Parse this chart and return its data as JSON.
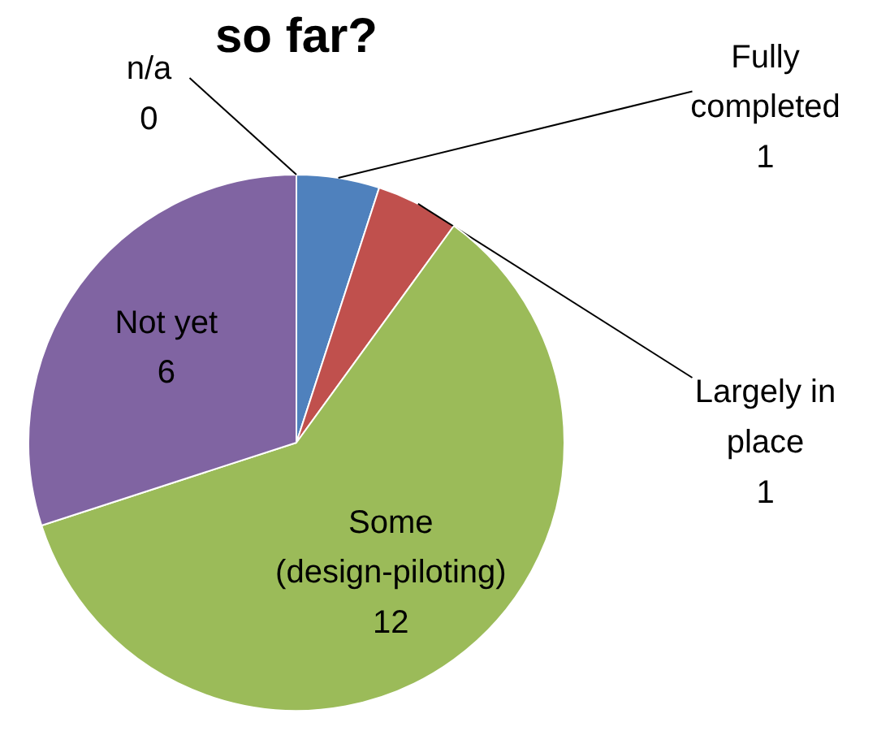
{
  "chart_data": {
    "type": "pie",
    "title": "so far?",
    "categories": [
      "Fully completed",
      "Largely in place",
      "Some (design-piloting)",
      "Not yet",
      "n/a"
    ],
    "values": [
      1,
      1,
      12,
      6,
      0
    ],
    "colors": [
      "#4f81bd",
      "#c0504d",
      "#9bbb59",
      "#8064a2",
      "#f79646"
    ],
    "value_labels": [
      "1",
      "1",
      "12",
      "6",
      "0"
    ]
  }
}
